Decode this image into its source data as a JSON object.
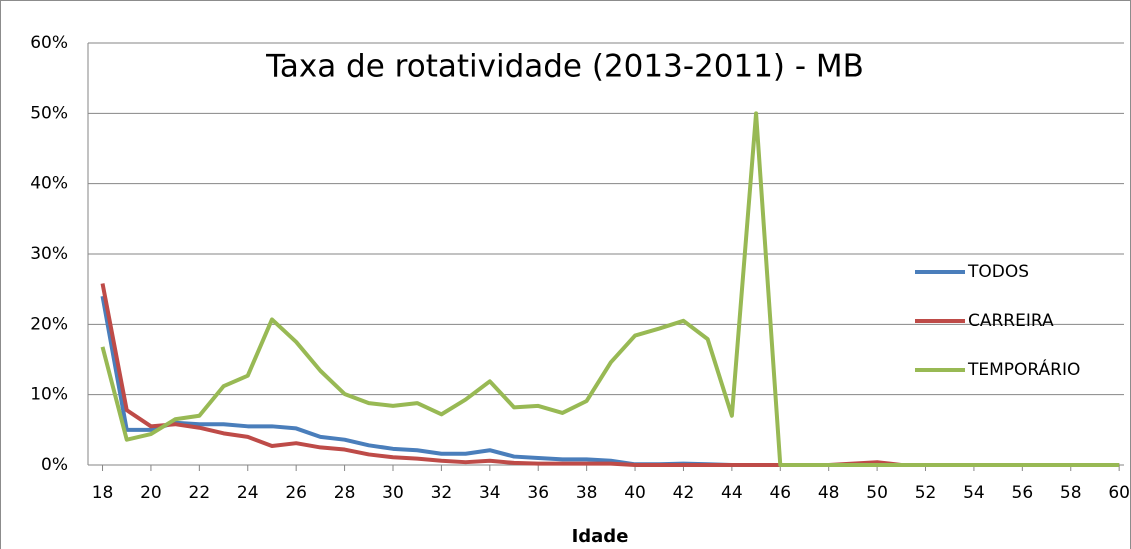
{
  "chart_data": {
    "type": "line",
    "title": "Taxa de rotatividade (2013-2011) - MB",
    "x_label": "Idade",
    "x": [
      18,
      19,
      20,
      21,
      22,
      23,
      24,
      25,
      26,
      27,
      28,
      29,
      30,
      31,
      32,
      33,
      34,
      35,
      36,
      37,
      38,
      39,
      40,
      41,
      42,
      43,
      44,
      45,
      46,
      47,
      48,
      49,
      50,
      51,
      52,
      53,
      54,
      55,
      56,
      57,
      58,
      59,
      60
    ],
    "series": [
      {
        "name": "TODOS",
        "color": "#4a7ebb",
        "values": [
          24,
          5,
          5,
          6,
          5.8,
          5.8,
          5.5,
          5.5,
          5.2,
          4,
          3.6,
          2.8,
          2.3,
          2.1,
          1.6,
          1.6,
          2.1,
          1.2,
          1,
          0.8,
          0.8,
          0.6,
          0.1,
          0.1,
          0.2,
          0.1,
          0,
          0,
          0,
          0,
          0,
          0,
          0,
          0,
          0,
          0,
          0,
          0,
          0,
          0,
          0,
          0,
          0
        ]
      },
      {
        "name": "CARREIRA",
        "color": "#be4b48",
        "values": [
          25.8,
          7.8,
          5.5,
          5.8,
          5.3,
          4.5,
          4,
          2.7,
          3.1,
          2.5,
          2.2,
          1.5,
          1.1,
          0.9,
          0.6,
          0.4,
          0.6,
          0.3,
          0.2,
          0.2,
          0.2,
          0.2,
          0,
          0,
          0,
          0,
          0,
          0,
          0,
          0,
          0,
          0.2,
          0.4,
          0,
          0,
          0,
          0,
          0,
          0,
          0,
          0,
          0,
          0
        ]
      },
      {
        "name": "TEMPORÁRIO",
        "color": "#98b954",
        "values": [
          16.8,
          3.6,
          4.4,
          6.5,
          7,
          11.2,
          12.7,
          20.7,
          17.5,
          13.4,
          10.1,
          8.8,
          8.4,
          8.8,
          7.2,
          9.3,
          11.9,
          8.2,
          8.4,
          7.4,
          9.1,
          14.6,
          18.4,
          19.4,
          20.5,
          17.9,
          7,
          50,
          0,
          0,
          0,
          0,
          0,
          0,
          0,
          0,
          0,
          0,
          0,
          0,
          0,
          0,
          0
        ]
      }
    ],
    "xlim": [
      17.4,
      60.2
    ],
    "xticks": [
      18,
      20,
      22,
      24,
      26,
      28,
      30,
      32,
      34,
      36,
      38,
      40,
      42,
      44,
      46,
      48,
      50,
      52,
      54,
      56,
      58,
      60
    ],
    "ylim": [
      0,
      60
    ],
    "yticks": [
      {
        "value": 0,
        "label": "0%"
      },
      {
        "value": 10,
        "label": "10%"
      },
      {
        "value": 20,
        "label": "20%"
      },
      {
        "value": 30,
        "label": "30%"
      },
      {
        "value": 40,
        "label": "40%"
      },
      {
        "value": 50,
        "label": "50%"
      },
      {
        "value": 60,
        "label": "60%"
      }
    ],
    "grid": true,
    "legend": "right"
  }
}
